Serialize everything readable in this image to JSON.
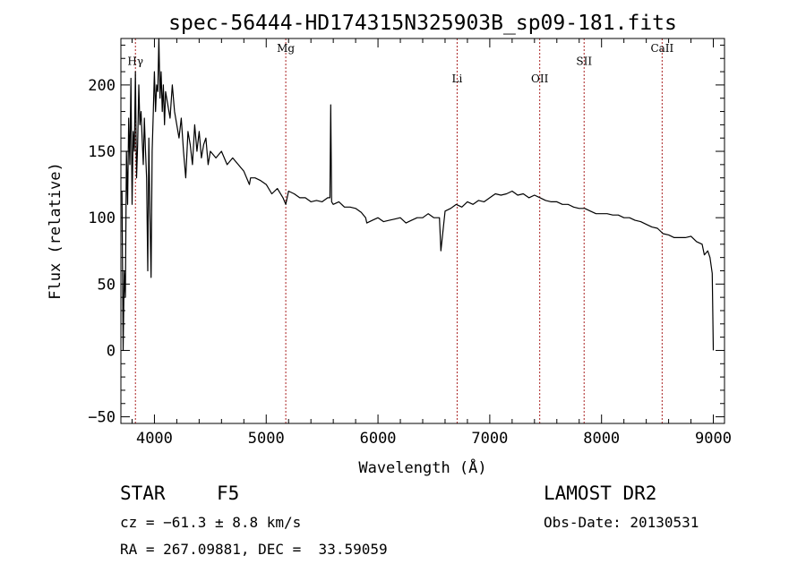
{
  "chart_data": {
    "type": "line",
    "title": "spec-56444-HD174315N325903B_sp09-181.fits",
    "xlabel": "Wavelength (Å)",
    "ylabel": "Flux (relative)",
    "xlim": [
      3700,
      9100
    ],
    "ylim": [
      -55,
      235
    ],
    "x_ticks": [
      4000,
      5000,
      6000,
      7000,
      8000,
      9000
    ],
    "y_ticks": [
      -50,
      0,
      50,
      100,
      150,
      200
    ],
    "grid": false,
    "legend": "none",
    "line_color": "#000000",
    "marker_color": "#aa2222",
    "spectral_lines": [
      {
        "name": "Hγ",
        "wavelength": 3830,
        "label_y": 215
      },
      {
        "name": "Mg",
        "wavelength": 5175,
        "label_y": 225
      },
      {
        "name": "Li",
        "wavelength": 6708,
        "label_y": 202
      },
      {
        "name": "OII",
        "wavelength": 7447,
        "label_y": 202
      },
      {
        "name": "SII",
        "wavelength": 7844,
        "label_y": 215
      },
      {
        "name": "CaII",
        "wavelength": 8542,
        "label_y": 225
      }
    ],
    "series": [
      {
        "x": [
          3710,
          3720,
          3730,
          3740,
          3750,
          3760,
          3770,
          3780,
          3790,
          3800,
          3810,
          3820,
          3830,
          3840,
          3850,
          3860,
          3870,
          3880,
          3890,
          3900,
          3910,
          3920,
          3930,
          3940,
          3950,
          3960,
          3970,
          3980,
          3990,
          4000,
          4010,
          4020,
          4030,
          4040,
          4050,
          4060,
          4070,
          4080,
          4090,
          4100,
          4120,
          4140,
          4160,
          4180,
          4200,
          4220,
          4240,
          4260,
          4280,
          4300,
          4320,
          4340,
          4360,
          4380,
          4400,
          4420,
          4440,
          4460,
          4480,
          4500,
          4550,
          4600,
          4650,
          4700,
          4750,
          4800,
          4850,
          4860,
          4900,
          4950,
          5000,
          5050,
          5100,
          5150,
          5175,
          5200,
          5250,
          5300,
          5350,
          5400,
          5450,
          5500,
          5550,
          5570,
          5577,
          5585,
          5600,
          5650,
          5700,
          5750,
          5800,
          5850,
          5890,
          5900,
          5950,
          6000,
          6050,
          6100,
          6150,
          6200,
          6250,
          6300,
          6350,
          6400,
          6450,
          6500,
          6550,
          6563,
          6600,
          6650,
          6700,
          6750,
          6800,
          6850,
          6900,
          6950,
          7000,
          7050,
          7100,
          7150,
          7200,
          7250,
          7300,
          7350,
          7400,
          7450,
          7500,
          7550,
          7600,
          7650,
          7700,
          7750,
          7800,
          7850,
          7900,
          7950,
          8000,
          8050,
          8100,
          8150,
          8200,
          8250,
          8300,
          8350,
          8400,
          8450,
          8500,
          8550,
          8600,
          8650,
          8700,
          8750,
          8800,
          8850,
          8900,
          8920,
          8950,
          8970,
          8990,
          9000
        ],
        "y": [
          120,
          0,
          60,
          40,
          150,
          110,
          175,
          140,
          205,
          110,
          165,
          150,
          210,
          130,
          155,
          200,
          170,
          180,
          160,
          140,
          175,
          150,
          130,
          60,
          160,
          100,
          55,
          150,
          180,
          210,
          180,
          200,
          195,
          235,
          190,
          210,
          180,
          200,
          170,
          195,
          185,
          175,
          200,
          180,
          170,
          160,
          175,
          150,
          130,
          165,
          155,
          140,
          170,
          150,
          165,
          145,
          155,
          160,
          140,
          150,
          145,
          150,
          140,
          145,
          140,
          135,
          125,
          130,
          130,
          128,
          125,
          118,
          122,
          115,
          110,
          120,
          118,
          115,
          115,
          112,
          113,
          112,
          115,
          115,
          185,
          112,
          110,
          112,
          108,
          108,
          107,
          104,
          100,
          96,
          98,
          100,
          97,
          98,
          99,
          100,
          96,
          98,
          100,
          100,
          103,
          100,
          100,
          75,
          105,
          107,
          110,
          108,
          112,
          110,
          113,
          112,
          115,
          118,
          117,
          118,
          120,
          117,
          118,
          115,
          117,
          115,
          113,
          112,
          112,
          110,
          110,
          108,
          107,
          107,
          105,
          103,
          103,
          103,
          102,
          102,
          100,
          100,
          98,
          97,
          95,
          93,
          92,
          88,
          87,
          85,
          85,
          85,
          86,
          82,
          80,
          72,
          75,
          70,
          58,
          0
        ]
      }
    ]
  },
  "info": {
    "object_type": "STAR",
    "subclass": "F5",
    "survey": "LAMOST DR2",
    "redshift": "cz = −61.3 ± 8.8 km/s",
    "obs_date": "Obs-Date: 20130531",
    "coords": "RA = 267.09881, DEC =  33.59059"
  }
}
